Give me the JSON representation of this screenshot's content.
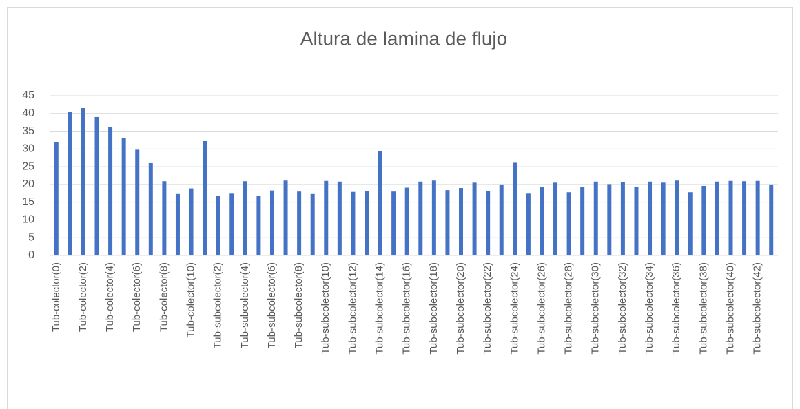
{
  "chart_data": {
    "type": "bar",
    "title": "Altura de lamina de flujo",
    "categories": [
      "Tub-colector(0)",
      null,
      "Tub-colector(2)",
      null,
      "Tub-colector(4)",
      null,
      "Tub-colector(6)",
      null,
      "Tub-colector(8)",
      null,
      "Tub-colector(10)",
      null,
      "Tub-subcolector(2)",
      null,
      "Tub-subcolector(4)",
      null,
      "Tub-subcolector(6)",
      null,
      "Tub-subcolector(8)",
      null,
      "Tub-subcolector(10)",
      null,
      "Tub-subcolector(12)",
      null,
      "Tub-subcolector(14)",
      null,
      "Tub-subcolector(16)",
      null,
      "Tub-subcolector(18)",
      null,
      "Tub-subcolector(20)",
      null,
      "Tub-subcolector(22)",
      null,
      "Tub-subcolector(24)",
      null,
      "Tub-subcolector(26)",
      null,
      "Tub-subcolector(28)",
      null,
      "Tub-subcolector(30)",
      null,
      "Tub-subcolector(32)",
      null,
      "Tub-subcolector(34)",
      null,
      "Tub-subcolector(36)",
      null,
      "Tub-subcolector(38)",
      null,
      "Tub-subcolector(40)",
      null,
      "Tub-subcolector(42)",
      null
    ],
    "values": [
      32,
      40.5,
      41.5,
      39,
      36.2,
      33,
      29.8,
      26,
      20.9,
      17.3,
      18.9,
      32.2,
      16.8,
      17.4,
      20.9,
      16.8,
      18.3,
      21.1,
      18,
      17.3,
      21,
      20.8,
      17.9,
      18.1,
      29.3,
      18,
      19.1,
      20.8,
      21.1,
      18.4,
      19,
      20.5,
      18.2,
      20,
      26.1,
      17.4,
      19.3,
      20.5,
      17.8,
      19.3,
      20.8,
      20.1,
      20.7,
      19.4,
      20.8,
      20.5,
      21.1,
      17.8,
      19.6,
      20.8,
      21,
      20.9,
      21,
      20
    ],
    "color": "#4472c4",
    "ylim": [
      0,
      45
    ],
    "yticks": [
      0,
      5,
      10,
      15,
      20,
      25,
      30,
      35,
      40,
      45
    ],
    "grid": true
  }
}
